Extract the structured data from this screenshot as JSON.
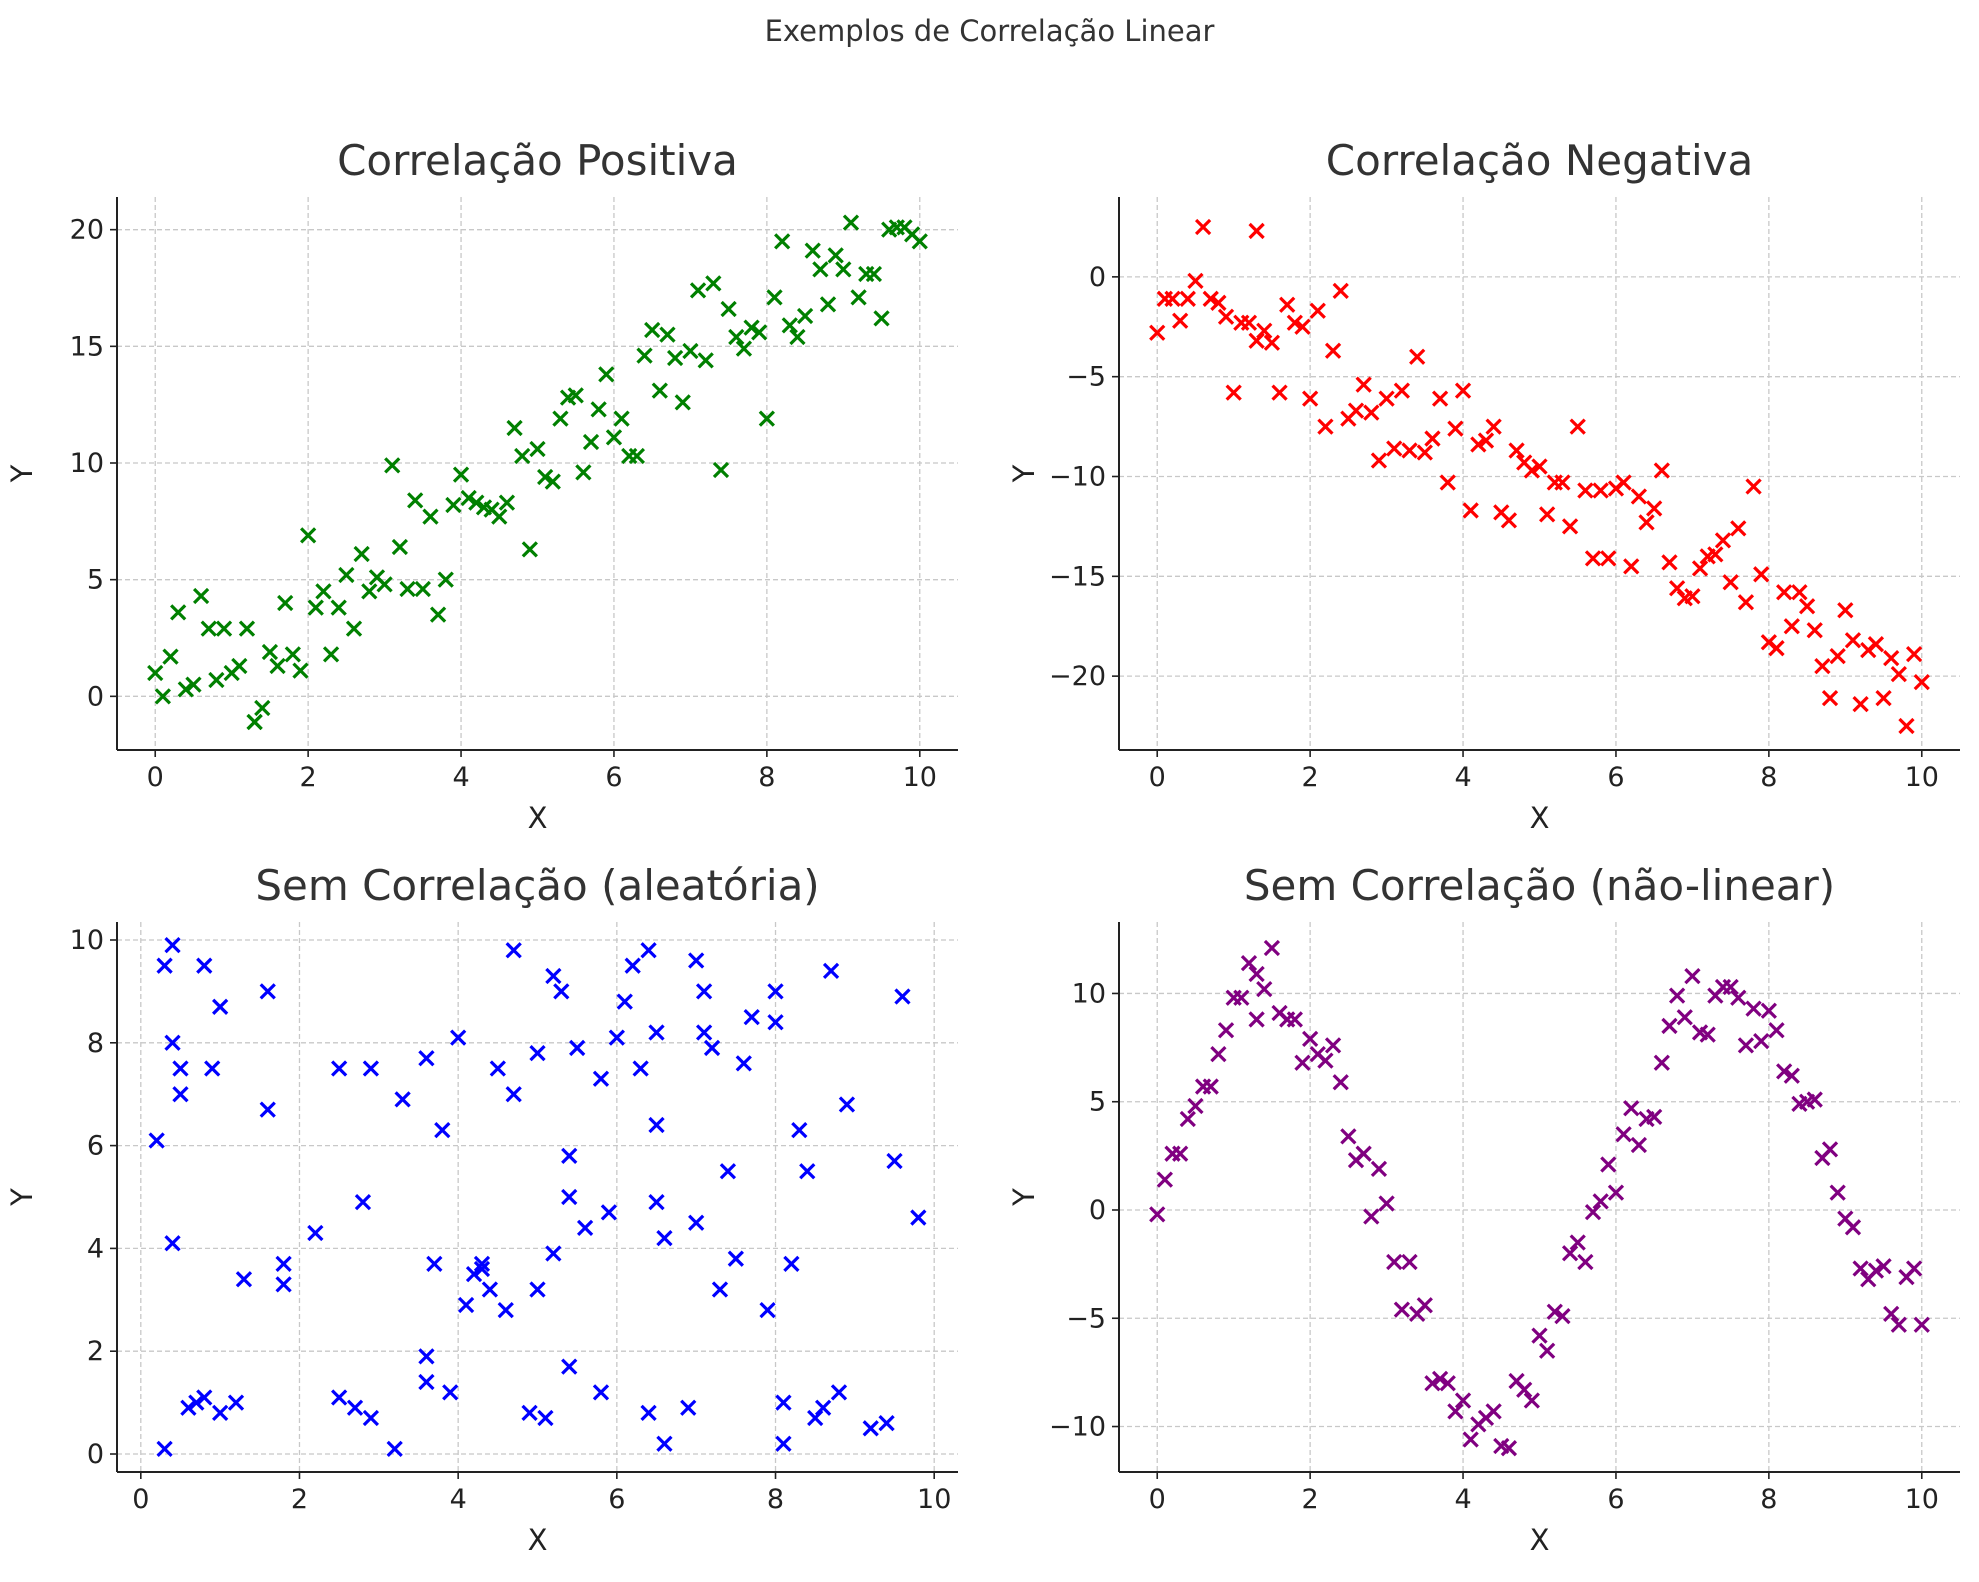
{
  "figure_title": "Exemplos de Correlação Linear",
  "chart_data": [
    {
      "type": "scatter",
      "title": "Correlação Positiva",
      "xlabel": "X",
      "ylabel": "Y",
      "color": "#008000",
      "marker": "x",
      "grid": true,
      "xlim": [
        -0.5,
        10.5
      ],
      "ylim": [
        -2.3,
        21.4
      ],
      "xticks": [
        0,
        2,
        4,
        6,
        8,
        10
      ],
      "yticks": [
        0,
        5,
        10,
        15,
        20
      ],
      "x": [
        0.0,
        0.1,
        0.2,
        0.3,
        0.4,
        0.5,
        0.6,
        0.7,
        0.8,
        0.9,
        1.0,
        1.1,
        1.2,
        1.3,
        1.3,
        1.4,
        1.5,
        1.6,
        1.7,
        1.8,
        1.9,
        2.0,
        2.1,
        2.2,
        2.3,
        2.4,
        2.5,
        2.6,
        2.7,
        2.8,
        2.9,
        3.0,
        3.1,
        3.2,
        3.3,
        3.4,
        3.5,
        3.6,
        3.7,
        3.8,
        3.9,
        4.0,
        4.1,
        4.2,
        4.3,
        4.4,
        4.5,
        4.6,
        4.7,
        4.8,
        4.9,
        5.0,
        5.1,
        5.2,
        5.3,
        5.4,
        5.5,
        5.6,
        5.7,
        5.8,
        5.9,
        6.0,
        6.1,
        6.2,
        6.3,
        6.4,
        6.5,
        6.6,
        6.7,
        6.8,
        6.9,
        7.0,
        7.1,
        7.2,
        7.3,
        7.4,
        7.5,
        7.6,
        7.7,
        7.8,
        7.9,
        8.0,
        8.1,
        8.2,
        8.3,
        8.4,
        8.5,
        8.6,
        8.7,
        8.8,
        8.9,
        9.0,
        9.1,
        9.2,
        9.3,
        9.4,
        9.5,
        9.6,
        9.7,
        9.8,
        9.9,
        10.0
      ],
      "y": [
        1.0,
        0.0,
        1.7,
        3.6,
        0.3,
        0.5,
        4.3,
        2.9,
        0.7,
        2.9,
        1.0,
        1.3,
        2.9,
        -1.1,
        -1.1,
        -0.5,
        1.9,
        1.3,
        4.0,
        1.8,
        1.1,
        6.9,
        3.8,
        4.5,
        1.8,
        3.8,
        5.2,
        2.9,
        6.1,
        4.5,
        5.1,
        4.8,
        9.9,
        6.4,
        4.6,
        8.4,
        4.6,
        7.7,
        3.5,
        5.0,
        8.2,
        9.5,
        8.5,
        8.3,
        8.1,
        8.0,
        7.7,
        8.3,
        11.5,
        10.3,
        6.3,
        10.6,
        9.4,
        9.2,
        11.9,
        12.8,
        12.9,
        9.6,
        10.9,
        12.3,
        13.8,
        11.1,
        11.9,
        10.3,
        10.3,
        14.6,
        15.7,
        13.1,
        15.5,
        14.5,
        12.6,
        14.8,
        17.4,
        14.4,
        17.7,
        9.7,
        16.6,
        15.4,
        14.9,
        15.8,
        15.6,
        11.9,
        17.1,
        19.5,
        15.9,
        15.4,
        16.3,
        19.1,
        18.3,
        16.8,
        18.9,
        18.3,
        20.3,
        17.1,
        18.1,
        18.1,
        16.2,
        20.0,
        20.1,
        20.1,
        19.8,
        19.5
      ]
    },
    {
      "type": "scatter",
      "title": "Correlação Negativa",
      "xlabel": "X",
      "ylabel": "Y",
      "color": "#ff0000",
      "marker": "x",
      "grid": true,
      "xlim": [
        -0.5,
        10.5
      ],
      "ylim": [
        -23.7,
        4.0
      ],
      "xticks": [
        0,
        2,
        4,
        6,
        8,
        10
      ],
      "yticks": [
        0,
        -5,
        -10,
        -15,
        -20
      ],
      "x": [
        0.0,
        0.1,
        0.2,
        0.3,
        0.4,
        0.5,
        0.6,
        0.7,
        0.8,
        0.9,
        1.0,
        1.1,
        1.2,
        1.3,
        1.3,
        1.4,
        1.5,
        1.6,
        1.7,
        1.8,
        1.9,
        2.0,
        2.1,
        2.2,
        2.3,
        2.4,
        2.5,
        2.6,
        2.7,
        2.8,
        2.9,
        3.0,
        3.1,
        3.2,
        3.3,
        3.4,
        3.5,
        3.6,
        3.7,
        3.8,
        3.9,
        4.0,
        4.1,
        4.2,
        4.3,
        4.4,
        4.5,
        4.6,
        4.7,
        4.8,
        4.9,
        5.0,
        5.1,
        5.2,
        5.3,
        5.4,
        5.5,
        5.6,
        5.7,
        5.8,
        5.9,
        6.0,
        6.1,
        6.2,
        6.3,
        6.4,
        6.5,
        6.6,
        6.7,
        6.8,
        6.9,
        7.0,
        7.1,
        7.2,
        7.3,
        7.4,
        7.5,
        7.6,
        7.7,
        7.8,
        7.9,
        8.0,
        8.1,
        8.2,
        8.3,
        8.4,
        8.5,
        8.6,
        8.7,
        8.8,
        8.9,
        9.0,
        9.1,
        9.2,
        9.3,
        9.4,
        9.5,
        9.6,
        9.7,
        9.8,
        9.9,
        10.0
      ],
      "y": [
        -2.8,
        -1.1,
        -1.1,
        -2.2,
        -1.1,
        -0.2,
        2.5,
        -1.1,
        -1.3,
        -2.0,
        -5.8,
        -2.3,
        -2.3,
        2.3,
        -3.2,
        -2.7,
        -3.3,
        -5.8,
        -1.4,
        -2.3,
        -2.5,
        -6.1,
        -1.7,
        -7.5,
        -3.7,
        -0.7,
        -7.1,
        -6.7,
        -5.4,
        -6.8,
        -9.2,
        -6.1,
        -8.6,
        -5.7,
        -8.7,
        -4.0,
        -8.8,
        -8.1,
        -6.1,
        -10.3,
        -7.6,
        -5.7,
        -11.7,
        -8.4,
        -8.2,
        -7.5,
        -11.8,
        -12.2,
        -8.7,
        -9.3,
        -9.7,
        -9.5,
        -11.9,
        -10.3,
        -10.3,
        -12.5,
        -7.5,
        -10.7,
        -14.1,
        -10.7,
        -14.1,
        -10.6,
        -10.3,
        -14.5,
        -11.0,
        -12.3,
        -11.6,
        -9.7,
        -14.3,
        -15.6,
        -16.1,
        -16.0,
        -14.6,
        -14.0,
        -13.9,
        -13.2,
        -15.3,
        -12.6,
        -16.3,
        -10.5,
        -14.9,
        -18.3,
        -18.6,
        -15.8,
        -17.5,
        -15.8,
        -16.5,
        -17.7,
        -19.5,
        -21.1,
        -19.0,
        -16.7,
        -18.2,
        -21.4,
        -18.7,
        -18.4,
        -21.1,
        -19.1,
        -19.9,
        -22.5,
        -18.9,
        -20.3
      ]
    },
    {
      "type": "scatter",
      "title": "Sem Correlação (aleatória)",
      "xlabel": "X",
      "ylabel": "Y",
      "color": "#0000ff",
      "marker": "x",
      "grid": true,
      "xlim": [
        -0.3,
        10.3
      ],
      "ylim": [
        -0.35,
        10.35
      ],
      "xticks": [
        0,
        2,
        4,
        6,
        8,
        10
      ],
      "yticks": [
        0,
        2,
        4,
        6,
        8,
        10
      ],
      "x": [
        0.2,
        0.3,
        0.3,
        0.4,
        0.4,
        0.4,
        0.5,
        0.5,
        0.6,
        0.7,
        0.8,
        0.8,
        0.9,
        1.0,
        1.0,
        1.2,
        1.3,
        1.6,
        1.6,
        1.8,
        1.8,
        2.2,
        2.5,
        2.5,
        2.7,
        2.8,
        2.9,
        2.9,
        3.2,
        3.3,
        3.6,
        3.6,
        3.6,
        3.7,
        3.8,
        3.9,
        4.0,
        4.1,
        4.2,
        4.3,
        4.3,
        4.4,
        4.5,
        4.6,
        4.7,
        4.7,
        4.9,
        5.0,
        5.0,
        5.1,
        5.2,
        5.2,
        5.3,
        5.4,
        5.4,
        5.4,
        5.5,
        5.6,
        5.8,
        5.8,
        5.9,
        6.0,
        6.1,
        6.2,
        6.3,
        6.4,
        6.4,
        6.5,
        6.5,
        6.5,
        6.6,
        6.6,
        6.9,
        7.0,
        7.0,
        7.1,
        7.1,
        7.2,
        7.3,
        7.4,
        7.5,
        7.6,
        7.7,
        7.9,
        8.0,
        8.0,
        8.1,
        8.1,
        8.2,
        8.3,
        8.4,
        8.5,
        8.6,
        8.7,
        8.8,
        8.9,
        9.2,
        9.4,
        9.5,
        9.6,
        9.8
      ],
      "y": [
        6.1,
        0.1,
        9.5,
        9.9,
        4.1,
        8.0,
        7.0,
        7.5,
        0.9,
        1.0,
        1.1,
        9.5,
        7.5,
        8.7,
        0.8,
        1.0,
        3.4,
        6.7,
        9.0,
        3.7,
        3.3,
        4.3,
        7.5,
        1.1,
        0.9,
        4.9,
        7.5,
        0.7,
        0.1,
        6.9,
        1.9,
        1.4,
        7.7,
        3.7,
        6.3,
        1.2,
        8.1,
        2.9,
        3.5,
        3.6,
        3.7,
        3.2,
        7.5,
        2.8,
        9.8,
        7.0,
        0.8,
        3.2,
        7.8,
        0.7,
        3.9,
        9.3,
        9.0,
        5.0,
        5.8,
        1.7,
        7.9,
        4.4,
        1.2,
        7.3,
        4.7,
        8.1,
        8.8,
        9.5,
        7.5,
        0.8,
        9.8,
        8.2,
        6.4,
        4.9,
        0.2,
        4.2,
        0.9,
        4.5,
        9.6,
        8.2,
        9.0,
        7.9,
        3.2,
        5.5,
        3.8,
        7.6,
        8.5,
        2.8,
        9.0,
        8.4,
        0.2,
        1.0,
        3.7,
        6.3,
        5.5,
        0.7,
        0.9,
        9.4,
        1.2,
        6.8,
        0.5,
        0.6,
        5.7,
        8.9,
        4.6
      ]
    },
    {
      "type": "scatter",
      "title": "Sem Correlação (não-linear)",
      "xlabel": "X",
      "ylabel": "Y",
      "color": "#800080",
      "marker": "x",
      "grid": true,
      "xlim": [
        -0.5,
        10.5
      ],
      "ylim": [
        -12.1,
        13.3
      ],
      "xticks": [
        0,
        2,
        4,
        6,
        8,
        10
      ],
      "yticks": [
        10,
        5,
        0,
        -5,
        -10
      ],
      "x": [
        0.0,
        0.1,
        0.2,
        0.3,
        0.4,
        0.5,
        0.6,
        0.7,
        0.8,
        0.9,
        1.0,
        1.1,
        1.2,
        1.3,
        1.3,
        1.4,
        1.5,
        1.6,
        1.7,
        1.8,
        1.9,
        2.0,
        2.1,
        2.2,
        2.3,
        2.4,
        2.5,
        2.6,
        2.7,
        2.8,
        2.9,
        3.0,
        3.1,
        3.2,
        3.3,
        3.4,
        3.5,
        3.6,
        3.7,
        3.8,
        3.9,
        4.0,
        4.1,
        4.2,
        4.3,
        4.4,
        4.5,
        4.6,
        4.7,
        4.8,
        4.9,
        5.0,
        5.1,
        5.2,
        5.3,
        5.4,
        5.5,
        5.6,
        5.7,
        5.8,
        5.9,
        6.0,
        6.1,
        6.2,
        6.3,
        6.4,
        6.5,
        6.6,
        6.7,
        6.8,
        6.9,
        7.0,
        7.1,
        7.2,
        7.3,
        7.4,
        7.5,
        7.6,
        7.7,
        7.8,
        7.9,
        8.0,
        8.1,
        8.2,
        8.3,
        8.4,
        8.5,
        8.6,
        8.7,
        8.8,
        8.9,
        9.0,
        9.1,
        9.2,
        9.3,
        9.4,
        9.5,
        9.6,
        9.7,
        9.8,
        9.9,
        10.0
      ],
      "y": [
        -0.2,
        1.4,
        2.6,
        2.6,
        4.2,
        4.8,
        5.7,
        5.7,
        7.2,
        8.3,
        9.8,
        9.8,
        11.4,
        8.8,
        10.9,
        10.2,
        12.1,
        9.1,
        8.8,
        8.8,
        6.8,
        7.9,
        7.2,
        6.9,
        7.6,
        5.9,
        3.4,
        2.3,
        2.6,
        -0.3,
        1.9,
        0.3,
        -2.4,
        -4.6,
        -2.4,
        -4.8,
        -4.4,
        -8.0,
        -7.8,
        -8.0,
        -9.3,
        -8.8,
        -10.6,
        -9.9,
        -9.6,
        -9.3,
        -10.9,
        -11.0,
        -7.9,
        -8.3,
        -8.8,
        -5.8,
        -6.5,
        -4.7,
        -4.9,
        -2.0,
        -1.5,
        -2.4,
        -0.1,
        0.4,
        2.1,
        0.8,
        3.5,
        4.7,
        3.0,
        4.2,
        4.3,
        6.8,
        8.5,
        9.9,
        8.9,
        10.8,
        8.2,
        8.1,
        9.9,
        10.3,
        10.3,
        9.8,
        7.6,
        9.3,
        7.8,
        9.2,
        8.3,
        6.4,
        6.2,
        4.9,
        5.0,
        5.1,
        2.4,
        2.8,
        0.8,
        -0.4,
        -0.8,
        -2.7,
        -3.2,
        -2.8,
        -2.6,
        -4.8,
        -5.3,
        -3.1,
        -2.7,
        -5.3
      ]
    }
  ]
}
